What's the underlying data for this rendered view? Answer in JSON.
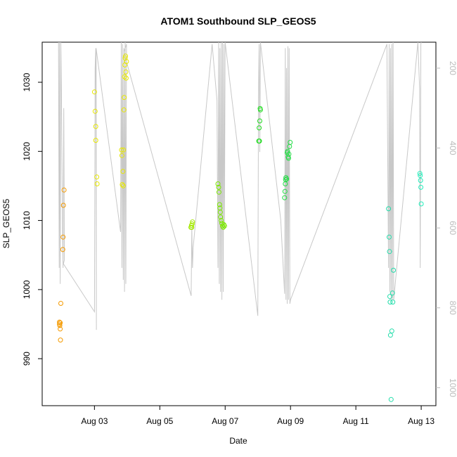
{
  "chart_data": {
    "type": "scatter",
    "title": "ATOM1 Southbound SLP_GEOS5",
    "xlabel": "Date",
    "ylabel": "SLP_GEOS5",
    "x_ticks": [
      "Aug 03",
      "Aug 05",
      "Aug 07",
      "Aug 09",
      "Aug 11",
      "Aug 13"
    ],
    "x_tick_values": [
      3,
      5,
      7,
      9,
      11,
      13
    ],
    "xlim": [
      1.4,
      13.45
    ],
    "ylim": [
      983.2,
      1035.8
    ],
    "y_ticks": [
      990,
      1000,
      1010,
      1020,
      1030
    ],
    "y2_ticks": [
      200,
      400,
      600,
      800,
      1000
    ],
    "y2lim": [
      1045,
      135
    ],
    "y2_color": "#bbbbbb",
    "points": [
      {
        "x": 1.93,
        "y": 995.3,
        "color": "#f59a00"
      },
      {
        "x": 1.93,
        "y": 995.0,
        "color": "#f59a00"
      },
      {
        "x": 1.94,
        "y": 994.8,
        "color": "#f59a00"
      },
      {
        "x": 1.95,
        "y": 995.2,
        "color": "#f59a00"
      },
      {
        "x": 1.95,
        "y": 994.3,
        "color": "#f59a00"
      },
      {
        "x": 1.96,
        "y": 992.7,
        "color": "#f59a00"
      },
      {
        "x": 1.97,
        "y": 998.0,
        "color": "#f59a00"
      },
      {
        "x": 2.03,
        "y": 1005.8,
        "color": "#f59a00"
      },
      {
        "x": 2.04,
        "y": 1007.6,
        "color": "#f59a00"
      },
      {
        "x": 2.05,
        "y": 1012.2,
        "color": "#f59a00"
      },
      {
        "x": 2.07,
        "y": 1014.4,
        "color": "#f59a00"
      },
      {
        "x": 3.0,
        "y": 1028.6,
        "color": "#e8e800"
      },
      {
        "x": 3.02,
        "y": 1025.8,
        "color": "#e8e800"
      },
      {
        "x": 3.04,
        "y": 1023.6,
        "color": "#e8e800"
      },
      {
        "x": 3.04,
        "y": 1021.6,
        "color": "#e8e800"
      },
      {
        "x": 3.07,
        "y": 1016.3,
        "color": "#e8e800"
      },
      {
        "x": 3.08,
        "y": 1015.3,
        "color": "#e8e800"
      },
      {
        "x": 3.83,
        "y": 1020.2,
        "color": "#e8e800"
      },
      {
        "x": 3.84,
        "y": 1019.4,
        "color": "#e8e800"
      },
      {
        "x": 3.85,
        "y": 1015.2,
        "color": "#e8e800"
      },
      {
        "x": 3.87,
        "y": 1017.1,
        "color": "#e8e800"
      },
      {
        "x": 3.88,
        "y": 1015.0,
        "color": "#e8e800"
      },
      {
        "x": 3.89,
        "y": 1020.2,
        "color": "#e8e800"
      },
      {
        "x": 3.9,
        "y": 1026.0,
        "color": "#e8e800"
      },
      {
        "x": 3.91,
        "y": 1027.8,
        "color": "#e8e800"
      },
      {
        "x": 3.92,
        "y": 1030.8,
        "color": "#e8e800"
      },
      {
        "x": 3.93,
        "y": 1032.5,
        "color": "#e8e800"
      },
      {
        "x": 3.94,
        "y": 1033.5,
        "color": "#e8e800"
      },
      {
        "x": 3.95,
        "y": 1033.8,
        "color": "#e8e800"
      },
      {
        "x": 3.96,
        "y": 1031.5,
        "color": "#e8e800"
      },
      {
        "x": 3.97,
        "y": 1030.6,
        "color": "#e8e800"
      },
      {
        "x": 3.98,
        "y": 1033.0,
        "color": "#e8e800"
      },
      {
        "x": 5.95,
        "y": 1009.0,
        "color": "#a3e800"
      },
      {
        "x": 5.97,
        "y": 1009.3,
        "color": "#a3e800"
      },
      {
        "x": 5.98,
        "y": 1009.0,
        "color": "#a3e800"
      },
      {
        "x": 5.99,
        "y": 1009.5,
        "color": "#a3e800"
      },
      {
        "x": 6.0,
        "y": 1009.8,
        "color": "#a3e800"
      },
      {
        "x": 6.78,
        "y": 1015.3,
        "color": "#7be800"
      },
      {
        "x": 6.8,
        "y": 1014.8,
        "color": "#7be800"
      },
      {
        "x": 6.81,
        "y": 1014.1,
        "color": "#7be800"
      },
      {
        "x": 6.83,
        "y": 1012.3,
        "color": "#7be800"
      },
      {
        "x": 6.84,
        "y": 1011.8,
        "color": "#7be800"
      },
      {
        "x": 6.85,
        "y": 1011.2,
        "color": "#7be800"
      },
      {
        "x": 6.86,
        "y": 1010.5,
        "color": "#7be800"
      },
      {
        "x": 6.88,
        "y": 1010.0,
        "color": "#7be800"
      },
      {
        "x": 6.9,
        "y": 1009.6,
        "color": "#7be800"
      },
      {
        "x": 6.92,
        "y": 1009.2,
        "color": "#7be800"
      },
      {
        "x": 6.94,
        "y": 1009.0,
        "color": "#7be800"
      },
      {
        "x": 6.96,
        "y": 1009.4,
        "color": "#7be800"
      },
      {
        "x": 6.98,
        "y": 1009.2,
        "color": "#7be800"
      },
      {
        "x": 8.03,
        "y": 1021.5,
        "color": "#22dd22"
      },
      {
        "x": 8.04,
        "y": 1023.4,
        "color": "#22dd22"
      },
      {
        "x": 8.05,
        "y": 1021.5,
        "color": "#22dd22"
      },
      {
        "x": 8.06,
        "y": 1024.4,
        "color": "#22dd22"
      },
      {
        "x": 8.07,
        "y": 1026.2,
        "color": "#22dd22"
      },
      {
        "x": 8.08,
        "y": 1026.0,
        "color": "#22dd22"
      },
      {
        "x": 8.82,
        "y": 1013.3,
        "color": "#22dd44"
      },
      {
        "x": 8.83,
        "y": 1014.2,
        "color": "#22dd44"
      },
      {
        "x": 8.84,
        "y": 1015.3,
        "color": "#22dd44"
      },
      {
        "x": 8.85,
        "y": 1015.9,
        "color": "#22dd44"
      },
      {
        "x": 8.86,
        "y": 1016.2,
        "color": "#22dd44"
      },
      {
        "x": 8.88,
        "y": 1016.0,
        "color": "#22dd44"
      },
      {
        "x": 8.9,
        "y": 1019.8,
        "color": "#22dd44"
      },
      {
        "x": 8.91,
        "y": 1020.0,
        "color": "#22dd44"
      },
      {
        "x": 8.93,
        "y": 1019.2,
        "color": "#22dd44"
      },
      {
        "x": 8.94,
        "y": 1019.0,
        "color": "#22dd44"
      },
      {
        "x": 8.95,
        "y": 1019.6,
        "color": "#22dd44"
      },
      {
        "x": 8.97,
        "y": 1020.7,
        "color": "#22dd44"
      },
      {
        "x": 8.99,
        "y": 1021.3,
        "color": "#22dd44"
      },
      {
        "x": 12.0,
        "y": 1011.7,
        "color": "#22ddaa"
      },
      {
        "x": 12.02,
        "y": 1007.6,
        "color": "#22ddaa"
      },
      {
        "x": 12.03,
        "y": 1005.5,
        "color": "#22ddaa"
      },
      {
        "x": 12.04,
        "y": 999.0,
        "color": "#22ddaa"
      },
      {
        "x": 12.05,
        "y": 998.2,
        "color": "#22ddaa"
      },
      {
        "x": 12.06,
        "y": 993.4,
        "color": "#22ddaa"
      },
      {
        "x": 12.08,
        "y": 984.1,
        "color": "#22ddaa"
      },
      {
        "x": 12.1,
        "y": 994.0,
        "color": "#22ddaa"
      },
      {
        "x": 12.12,
        "y": 999.5,
        "color": "#22ddaa"
      },
      {
        "x": 12.13,
        "y": 998.2,
        "color": "#22ddaa"
      },
      {
        "x": 12.15,
        "y": 1002.8,
        "color": "#22ddaa"
      },
      {
        "x": 12.96,
        "y": 1016.8,
        "color": "#22eebb"
      },
      {
        "x": 12.97,
        "y": 1016.5,
        "color": "#22eebb"
      },
      {
        "x": 12.98,
        "y": 1015.8,
        "color": "#22eebb"
      },
      {
        "x": 12.99,
        "y": 1014.8,
        "color": "#22eebb"
      },
      {
        "x": 13.0,
        "y": 1012.4,
        "color": "#22eebb"
      }
    ],
    "altitude_track": {
      "axis": "right",
      "color": "#c8c8c8",
      "x": [
        1.9,
        1.92,
        1.93,
        1.95,
        1.97,
        1.99,
        2.02,
        2.04,
        2.06,
        2.08,
        2.05,
        3.0,
        3.02,
        3.04,
        3.06,
        3.05,
        3.8,
        3.82,
        3.84,
        3.86,
        3.88,
        3.9,
        3.92,
        3.94,
        3.96,
        3.98,
        3.9,
        5.96,
        5.98,
        6.0,
        6.02,
        6.6,
        6.75,
        6.78,
        6.8,
        6.82,
        6.84,
        6.86,
        6.88,
        6.9,
        6.92,
        6.94,
        6.96,
        6.98,
        7.0,
        8.0,
        8.02,
        8.04,
        8.06,
        8.08,
        8.7,
        8.82,
        8.84,
        8.86,
        8.88,
        8.9,
        8.92,
        8.94,
        8.96,
        8.98,
        9.0,
        11.95,
        12.0,
        12.02,
        12.04,
        12.06,
        12.08,
        12.1,
        12.12,
        12.14,
        12.16,
        12.9,
        12.95,
        12.97,
        12.99,
        13.0
      ],
      "y": [
        135,
        700,
        135,
        740,
        135,
        260,
        600,
        700,
        300,
        680,
        690,
        810,
        200,
        150,
        855,
        150,
        610,
        135,
        700,
        140,
        730,
        150,
        760,
        135,
        740,
        140,
        160,
        770,
        600,
        700,
        650,
        140,
        280,
        700,
        135,
        740,
        150,
        760,
        135,
        780,
        135,
        760,
        140,
        600,
        135,
        820,
        250,
        140,
        410,
        120,
        580,
        765,
        150,
        780,
        200,
        790,
        145,
        780,
        150,
        790,
        780,
        140,
        700,
        140,
        760,
        150,
        780,
        140,
        780,
        130,
        780,
        130,
        250,
        700,
        140,
        135
      ]
    }
  }
}
